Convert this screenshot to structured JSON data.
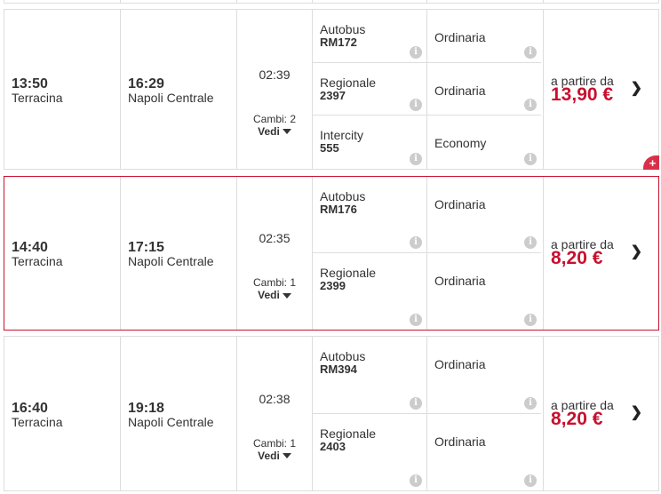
{
  "solutions": [
    {
      "departure_time": "13:50",
      "departure_station": "Terracina",
      "arrival_time": "16:29",
      "arrival_station": "Napoli Centrale",
      "duration": "02:39",
      "changes": "Cambi: 2",
      "details_label": "Vedi",
      "from_label": "a partire da",
      "price": "13,90 €",
      "selected": false,
      "segments": [
        {
          "train_type": "Autobus",
          "train_number": "RM172",
          "fare": "Ordinaria"
        },
        {
          "train_type": "Regionale",
          "train_number": "2397",
          "fare": "Ordinaria"
        },
        {
          "train_type": "Intercity",
          "train_number": "555",
          "fare": "Economy"
        }
      ]
    },
    {
      "departure_time": "14:40",
      "departure_station": "Terracina",
      "arrival_time": "17:15",
      "arrival_station": "Napoli Centrale",
      "duration": "02:35",
      "changes": "Cambi: 1",
      "details_label": "Vedi",
      "from_label": "a partire da",
      "price": "8,20 €",
      "selected": true,
      "segments": [
        {
          "train_type": "Autobus",
          "train_number": "RM176",
          "fare": "Ordinaria"
        },
        {
          "train_type": "Regionale",
          "train_number": "2399",
          "fare": "Ordinaria"
        }
      ]
    },
    {
      "departure_time": "16:40",
      "departure_station": "Terracina",
      "arrival_time": "19:18",
      "arrival_station": "Napoli Centrale",
      "duration": "02:38",
      "changes": "Cambi: 1",
      "details_label": "Vedi",
      "from_label": "a partire da",
      "price": "8,20 €",
      "selected": false,
      "segments": [
        {
          "train_type": "Autobus",
          "train_number": "RM394",
          "fare": "Ordinaria"
        },
        {
          "train_type": "Regionale",
          "train_number": "2403",
          "fare": "Ordinaria"
        }
      ]
    }
  ],
  "colors": {
    "accent": "#c8102e",
    "border": "#dddddd"
  }
}
